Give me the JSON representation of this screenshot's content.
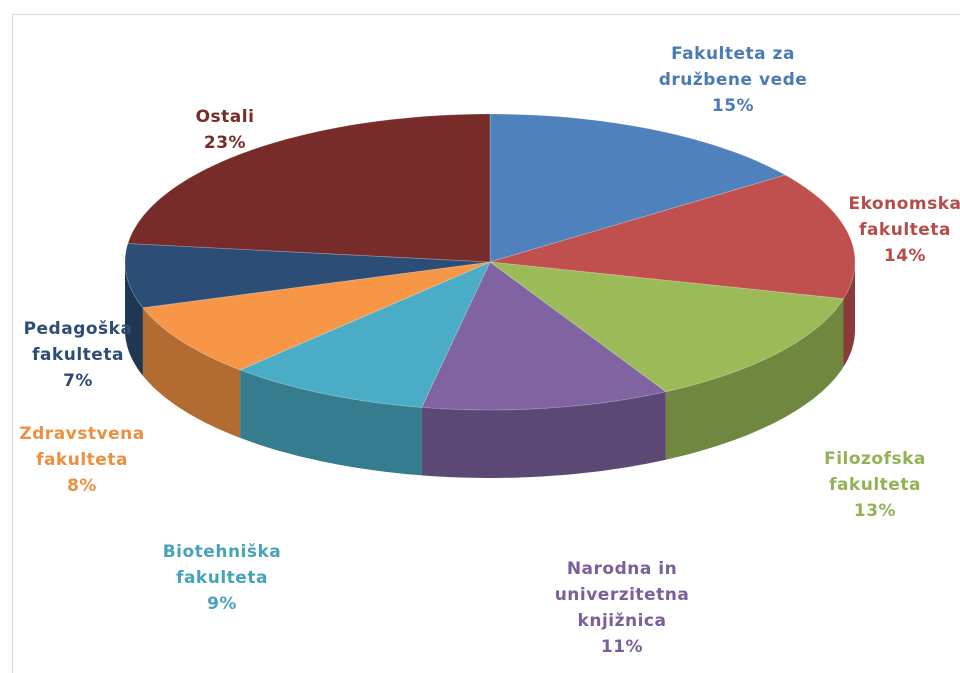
{
  "chart_data": {
    "type": "pie",
    "categories": [
      "Fakulteta za družbene vede",
      "Ekonomska fakulteta",
      "Filozofska fakulteta",
      "Narodna in univerzitetna knjižnica",
      "Biotehniška fakulteta",
      "Zdravstvena fakulteta",
      "Pedagoška fakulteta",
      "Ostali"
    ],
    "values": [
      15,
      14,
      13,
      11,
      9,
      8,
      7,
      23
    ],
    "value_labels": [
      "15%",
      "14%",
      "13%",
      "11%",
      "9%",
      "8%",
      "7%",
      "23%"
    ],
    "colors": [
      "#4f81bd",
      "#c0504d",
      "#9bbb59",
      "#8064a2",
      "#4bacc6",
      "#f79646",
      "#2c4d75",
      "#772c2a"
    ]
  }
}
